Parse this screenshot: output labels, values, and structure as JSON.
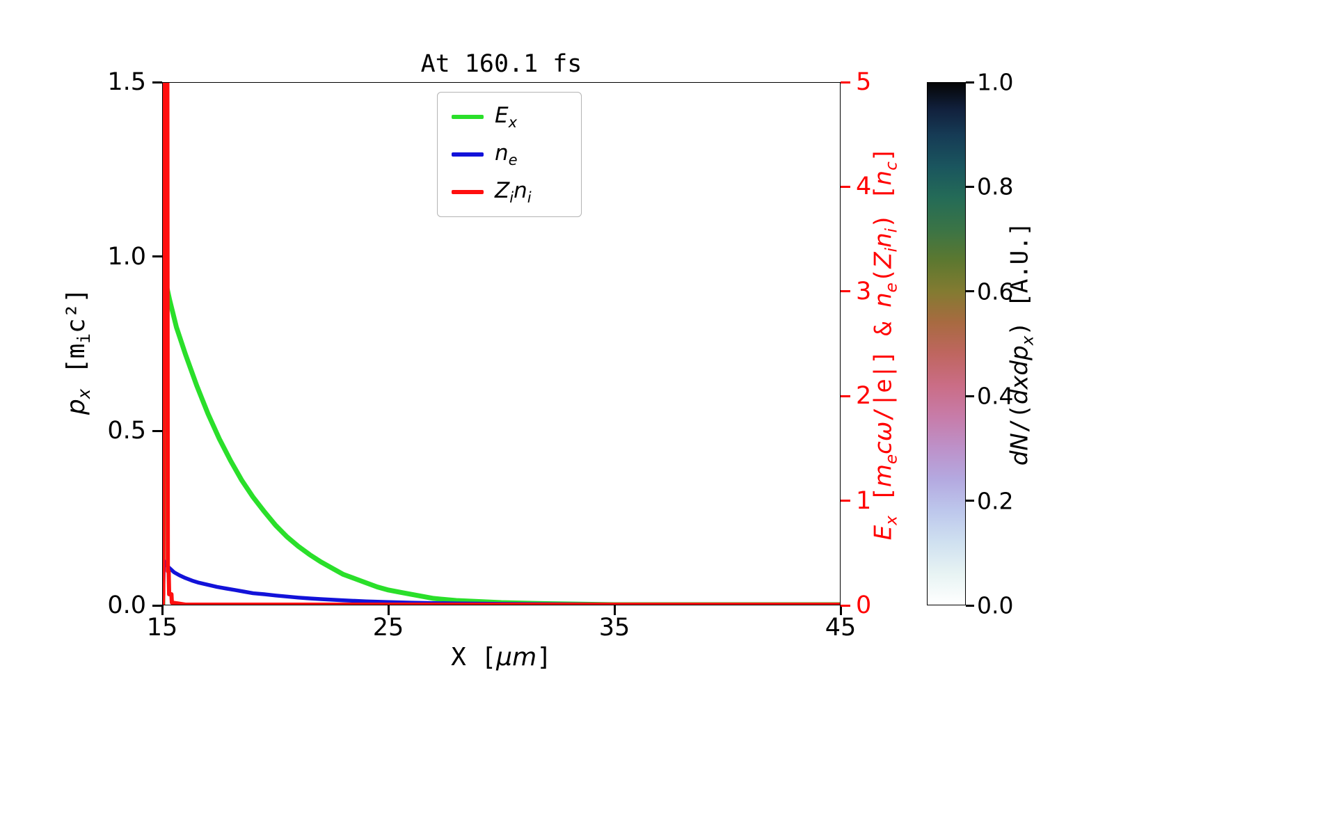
{
  "figure": {
    "background": "#ffffff"
  },
  "labels": {
    "title": "At 160.1 fs",
    "xlabel_html": "X [<i>μm</i>]",
    "ylabel_left_html": "<i>p<sub>x</sub></i> [m<sub>i</sub>c²]",
    "ylabel_right_html": "<i>E<sub>x</sub></i> [<i>m<sub>e</sub>cω</i>/|e|] &amp; <i>n<sub>e</sub></i>(<i>Z<sub>i</sub>n<sub>i</sub></i>) [<i>n<sub>c</sub></i>]",
    "colorbar_label_html": "<i>dN</i>/(<i>dxdp<sub>x</sub></i>) [A.U.]"
  },
  "colors": {
    "line_green": "#2adf2a",
    "line_blue": "#1212d9",
    "line_red": "#ff0f0f",
    "axis_red": "#ff0000",
    "spine": "#000000",
    "legend_border": "#b3b3b3"
  },
  "chart_data": {
    "type": "line",
    "title": "At 160.1 fs",
    "xlabel": "X [μm]",
    "ylabel_left": "p_x [m_i c^2]",
    "ylabel_right": "E_x [m_e cω/|e|] & n_e(Z_i n_i) [n_c]",
    "colorbar_label": "dN/(dxdp_x) [A.U.]",
    "xlim": [
      15,
      45
    ],
    "ylim_left": [
      0.0,
      1.5
    ],
    "ylim_right": [
      0,
      5
    ],
    "x_ticks": [
      15,
      25,
      35,
      45
    ],
    "y_ticks_left": [
      "0.0",
      "0.5",
      "1.0",
      "1.5"
    ],
    "y_ticks_right": [
      0,
      1,
      2,
      3,
      4,
      5
    ],
    "grid": false,
    "legend_position": "upper center",
    "series": [
      {
        "id": "Ex",
        "name": "E_x",
        "axis": "right",
        "color": "#2adf2a",
        "width": 7,
        "x": [
          15.0,
          15.06,
          15.12,
          15.3,
          15.6,
          16.0,
          16.5,
          17.0,
          17.5,
          18.0,
          18.5,
          19.0,
          19.5,
          20.0,
          20.5,
          21.0,
          21.5,
          22.0,
          22.5,
          23.0,
          23.5,
          24.0,
          24.5,
          25.0,
          25.5,
          26.0,
          26.5,
          27.0,
          28.0,
          29.0,
          30.0,
          32.0,
          35.0,
          40.0,
          45.0
        ],
        "y": [
          0.0,
          3.05,
          3.1,
          2.92,
          2.66,
          2.4,
          2.1,
          1.83,
          1.59,
          1.38,
          1.19,
          1.03,
          0.89,
          0.76,
          0.65,
          0.56,
          0.48,
          0.41,
          0.35,
          0.29,
          0.25,
          0.21,
          0.17,
          0.14,
          0.12,
          0.1,
          0.08,
          0.06,
          0.04,
          0.03,
          0.02,
          0.01,
          0.0,
          0.0,
          0.0
        ]
      },
      {
        "id": "ne",
        "name": "n_e",
        "axis": "right",
        "color": "#1212d9",
        "width": 5.5,
        "x": [
          15.0,
          15.05,
          15.2,
          15.35,
          15.5,
          15.75,
          16.0,
          16.3,
          16.6,
          17.0,
          17.4,
          17.8,
          18.2,
          18.6,
          19.0,
          19.5,
          20.0,
          20.5,
          21.0,
          21.5,
          22.0,
          22.5,
          23.0,
          24.0,
          25.0,
          26.0,
          27.0,
          28.0,
          30.0,
          32.0,
          35.0,
          40.0,
          45.0
        ],
        "y": [
          0.0,
          0.42,
          0.37,
          0.34,
          0.31,
          0.28,
          0.255,
          0.23,
          0.21,
          0.19,
          0.17,
          0.155,
          0.14,
          0.125,
          0.11,
          0.1,
          0.088,
          0.078,
          0.068,
          0.06,
          0.053,
          0.047,
          0.042,
          0.032,
          0.025,
          0.019,
          0.015,
          0.011,
          0.007,
          0.005,
          0.002,
          0.001,
          0.0
        ]
      },
      {
        "id": "Zini",
        "name": "Z_i n_i",
        "axis": "right",
        "color": "#ff0f0f",
        "width": 6,
        "x": [
          15.0,
          15.02,
          15.04,
          15.2,
          15.22,
          15.26,
          15.28,
          15.38,
          15.4,
          16.0,
          20.0,
          30.0,
          45.0
        ],
        "y": [
          0.0,
          0.1,
          5.0,
          5.0,
          0.32,
          0.32,
          0.1,
          0.1,
          0.02,
          0.0,
          0.0,
          0.0,
          0.0
        ]
      }
    ],
    "legend": [
      {
        "label_html": "<i>E<sub>x</sub></i>",
        "color": "#2adf2a"
      },
      {
        "label_html": "<i>n<sub>e</sub></i>",
        "color": "#1212d9"
      },
      {
        "label_html": "<i>Z<sub>i</sub>n<sub>i</sub></i>",
        "color": "#ff0f0f"
      }
    ],
    "colorbar": {
      "label": "dN/(dxdp_x) [A.U.]",
      "range": [
        0.0,
        1.0
      ],
      "ticks": [
        "0.0",
        "0.2",
        "0.4",
        "0.6",
        "0.8",
        "1.0"
      ],
      "colormap": "cubehelix_r",
      "stops": [
        [
          "0.00",
          "#ffffff"
        ],
        [
          "0.06",
          "#e7f3f3"
        ],
        [
          "0.12",
          "#cfe0f0"
        ],
        [
          "0.18",
          "#bdc7ec"
        ],
        [
          "0.24",
          "#b4a9e0"
        ],
        [
          "0.30",
          "#bd91c9"
        ],
        [
          "0.36",
          "#c77ca9"
        ],
        [
          "0.42",
          "#ca6d86"
        ],
        [
          "0.48",
          "#bf6660"
        ],
        [
          "0.54",
          "#a86a41"
        ],
        [
          "0.60",
          "#837b31"
        ],
        [
          "0.66",
          "#5c7830"
        ],
        [
          "0.72",
          "#3a7446"
        ],
        [
          "0.78",
          "#246b57"
        ],
        [
          "0.84",
          "#1a555e"
        ],
        [
          "0.90",
          "#163b55"
        ],
        [
          "0.95",
          "#11203c"
        ],
        [
          "1.00",
          "#050505"
        ]
      ]
    }
  }
}
